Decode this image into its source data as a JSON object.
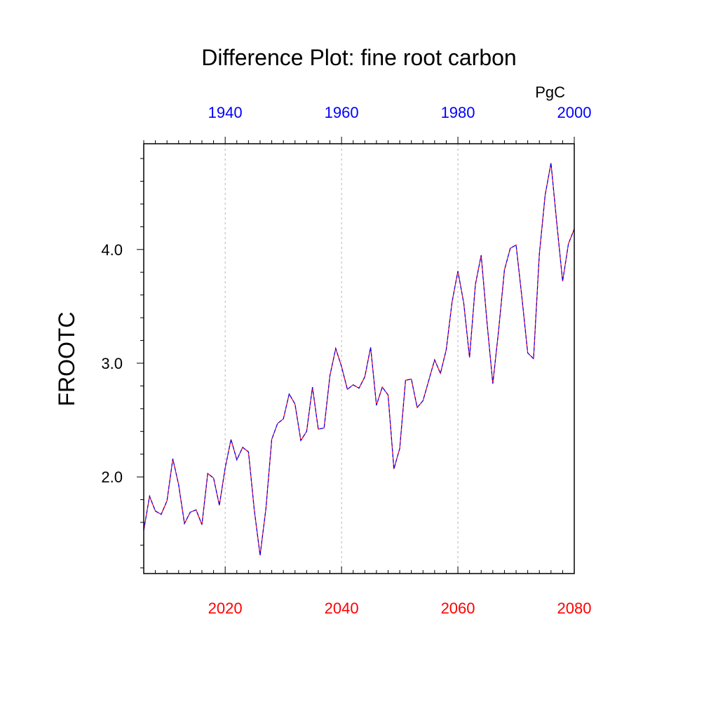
{
  "chart_data": {
    "type": "line",
    "title": "Difference Plot: fine root carbon",
    "ylabel": "FROOTC",
    "units": "PgC",
    "bottom_axis": {
      "range": [
        2006,
        2080
      ],
      "ticks": [
        "2020",
        "2040",
        "2060",
        "2080"
      ],
      "color": "#ff0000"
    },
    "top_axis": {
      "range": [
        1926,
        2000
      ],
      "ticks": [
        "1940",
        "1960",
        "1980",
        "2000"
      ],
      "color": "#0000ff"
    },
    "ylim": [
      1.15,
      4.93
    ],
    "yticks": [
      "2.0",
      "3.0",
      "4.0"
    ],
    "grid": "vertical dashed at major bottom-axis ticks",
    "series": [
      {
        "color": "#ff0000",
        "style": "solid",
        "x": [
          2006,
          2007,
          2008,
          2009,
          2010,
          2011,
          2012,
          2013,
          2014,
          2015,
          2016,
          2017,
          2018,
          2019,
          2020,
          2021,
          2022,
          2023,
          2024,
          2025,
          2026,
          2027,
          2028,
          2029,
          2030,
          2031,
          2032,
          2033,
          2034,
          2035,
          2036,
          2037,
          2038,
          2039,
          2040,
          2041,
          2042,
          2043,
          2044,
          2045,
          2046,
          2047,
          2048,
          2049,
          2050,
          2051,
          2052,
          2053,
          2054,
          2055,
          2056,
          2057,
          2058,
          2059,
          2060,
          2061,
          2062,
          2063,
          2064,
          2065,
          2066,
          2067,
          2068,
          2069,
          2070,
          2071,
          2072,
          2073,
          2074,
          2075,
          2076,
          2077,
          2078,
          2079,
          2080
        ],
        "values": [
          1.53,
          1.83,
          1.7,
          1.67,
          1.79,
          2.16,
          1.93,
          1.59,
          1.69,
          1.71,
          1.58,
          2.03,
          1.99,
          1.75,
          2.08,
          2.33,
          2.15,
          2.26,
          2.22,
          1.71,
          1.31,
          1.72,
          2.33,
          2.47,
          2.51,
          2.73,
          2.64,
          2.32,
          2.4,
          2.79,
          2.42,
          2.43,
          2.89,
          3.13,
          2.97,
          2.77,
          2.81,
          2.78,
          2.88,
          3.14,
          2.63,
          2.79,
          2.72,
          2.07,
          2.25,
          2.85,
          2.86,
          2.61,
          2.67,
          2.85,
          3.03,
          2.91,
          3.12,
          3.54,
          3.81,
          3.53,
          3.05,
          3.69,
          3.95,
          3.36,
          2.82,
          3.29,
          3.82,
          4.01,
          4.04,
          3.58,
          3.09,
          3.04,
          3.96,
          4.48,
          4.76,
          4.23,
          3.72,
          4.05,
          4.18
        ]
      },
      {
        "color": "#0000ff",
        "style": "dashed",
        "x": [
          2006,
          2007,
          2008,
          2009,
          2010,
          2011,
          2012,
          2013,
          2014,
          2015,
          2016,
          2017,
          2018,
          2019,
          2020,
          2021,
          2022,
          2023,
          2024,
          2025,
          2026,
          2027,
          2028,
          2029,
          2030,
          2031,
          2032,
          2033,
          2034,
          2035,
          2036,
          2037,
          2038,
          2039,
          2040,
          2041,
          2042,
          2043,
          2044,
          2045,
          2046,
          2047,
          2048,
          2049,
          2050,
          2051,
          2052,
          2053,
          2054,
          2055,
          2056,
          2057,
          2058,
          2059,
          2060,
          2061,
          2062,
          2063,
          2064,
          2065,
          2066,
          2067,
          2068,
          2069,
          2070,
          2071,
          2072,
          2073,
          2074,
          2075,
          2076,
          2077,
          2078,
          2079,
          2080
        ],
        "values": [
          1.53,
          1.83,
          1.7,
          1.67,
          1.79,
          2.16,
          1.93,
          1.59,
          1.69,
          1.71,
          1.58,
          2.03,
          1.99,
          1.75,
          2.08,
          2.33,
          2.15,
          2.26,
          2.22,
          1.71,
          1.31,
          1.72,
          2.33,
          2.47,
          2.51,
          2.73,
          2.64,
          2.32,
          2.4,
          2.79,
          2.42,
          2.43,
          2.89,
          3.13,
          2.97,
          2.77,
          2.81,
          2.78,
          2.88,
          3.14,
          2.63,
          2.79,
          2.72,
          2.07,
          2.25,
          2.85,
          2.86,
          2.61,
          2.67,
          2.85,
          3.03,
          2.91,
          3.12,
          3.54,
          3.81,
          3.53,
          3.05,
          3.69,
          3.95,
          3.36,
          2.82,
          3.29,
          3.82,
          4.01,
          4.04,
          3.58,
          3.09,
          3.04,
          3.96,
          4.48,
          4.76,
          4.23,
          3.72,
          4.05,
          4.18
        ]
      }
    ]
  }
}
